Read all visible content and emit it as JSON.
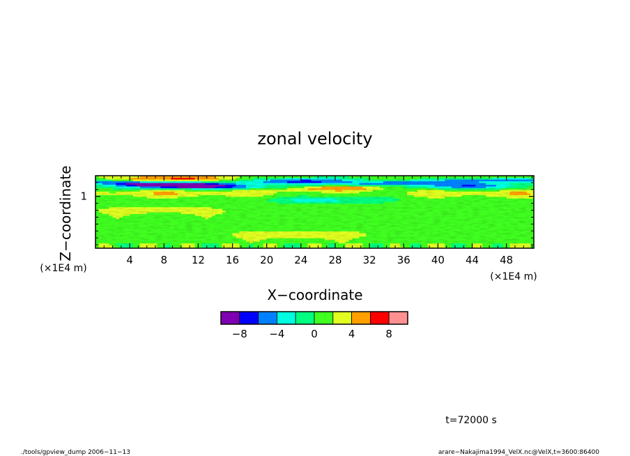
{
  "chart_data": {
    "type": "heatmap",
    "title": "zonal velocity",
    "xlabel": "X−coordinate",
    "ylabel": "Z−coordinate",
    "x_unit": "(×1E4 m)",
    "y_unit": "(×1E4 m)",
    "xlim": [
      0,
      51.2
    ],
    "ylim": [
      0.25,
      1.3
    ],
    "x_ticks": [
      4,
      8,
      12,
      16,
      20,
      24,
      28,
      32,
      36,
      40,
      44,
      48
    ],
    "x_tick_labels": [
      "4",
      "8",
      "12",
      "16",
      "20",
      "24",
      "28",
      "32",
      "36",
      "40",
      "44",
      "48"
    ],
    "y_ticks": [
      1
    ],
    "y_tick_labels": [
      "1"
    ],
    "colorbar": {
      "levels": [
        -10,
        -8,
        -6,
        -4,
        -2,
        0,
        2,
        4,
        6,
        8,
        10
      ],
      "colors": [
        "#7f00b2",
        "#0000ff",
        "#0080ff",
        "#00ffe0",
        "#00ff80",
        "#40ff20",
        "#e0ff20",
        "#ffa000",
        "#ff0000",
        "#ff9090"
      ],
      "tick_values": [
        -8,
        -4,
        0,
        4,
        8
      ],
      "tick_labels": [
        "−8",
        "−4",
        "0",
        "4",
        "8"
      ]
    },
    "features": [
      {
        "x": 9.5,
        "z": 1.17,
        "value": -9.5
      },
      {
        "x": 24.5,
        "z": 1.22,
        "value": -7.5
      },
      {
        "x": 43,
        "z": 1.16,
        "value": -6
      },
      {
        "x": 26.5,
        "z": 1.14,
        "value": 8
      },
      {
        "x": 9.5,
        "z": 1.26,
        "value": 6.5
      },
      {
        "x": 7.5,
        "z": 0.8,
        "value": 3
      },
      {
        "x": 24,
        "z": 0.45,
        "value": 4
      },
      {
        "x": 27,
        "z": 0.95,
        "value": -3
      }
    ]
  },
  "annotations": {
    "time": "t=72000 s",
    "footer_left": "./tools/gpview_dump  2006−11−13",
    "footer_right": "arare−Nakajima1994_VelX.nc@VelX,t=3600:86400"
  }
}
